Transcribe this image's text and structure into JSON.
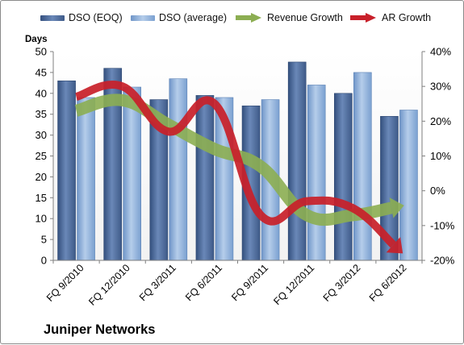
{
  "company": "Juniper Networks",
  "chart_data": {
    "type": "bar",
    "ylabel": "Days",
    "categories": [
      "FQ 9/2010",
      "FQ 12/2010",
      "FQ 3/2011",
      "FQ 6/2011",
      "FQ 9/2011",
      "FQ 12/2011",
      "FQ 3/2012",
      "FQ 6/2012"
    ],
    "series": [
      {
        "name": "DSO (EOQ)",
        "kind": "bar",
        "axis": "left",
        "color": "#4f6d9c",
        "values": [
          43,
          46,
          38.5,
          39.5,
          37,
          47.5,
          40,
          34.5
        ]
      },
      {
        "name": "DSO (average)",
        "kind": "bar",
        "axis": "left",
        "color": "#86a9d6",
        "values": [
          39,
          41.5,
          43.5,
          39,
          38.5,
          42,
          45,
          36
        ]
      },
      {
        "name": "Revenue Growth",
        "kind": "arrow-line",
        "axis": "right",
        "color": "#8cae52",
        "values": [
          23,
          26,
          19,
          12,
          7,
          -7,
          -7,
          -4.5
        ]
      },
      {
        "name": "AR Growth",
        "kind": "arrow-line",
        "axis": "right",
        "color": "#c8202a",
        "values": [
          27,
          30,
          17,
          25,
          -7,
          -3,
          -5,
          -17
        ]
      }
    ],
    "left_axis": {
      "min": 0,
      "max": 50,
      "step": 5,
      "ticks": [
        "0",
        "5",
        "10",
        "15",
        "20",
        "25",
        "30",
        "35",
        "40",
        "45",
        "50"
      ]
    },
    "right_axis": {
      "min": -20,
      "max": 40,
      "step": 10,
      "ticks": [
        "-20%",
        "-10%",
        "0%",
        "10%",
        "20%",
        "30%",
        "40%"
      ]
    },
    "grid": false,
    "legend": "top"
  }
}
